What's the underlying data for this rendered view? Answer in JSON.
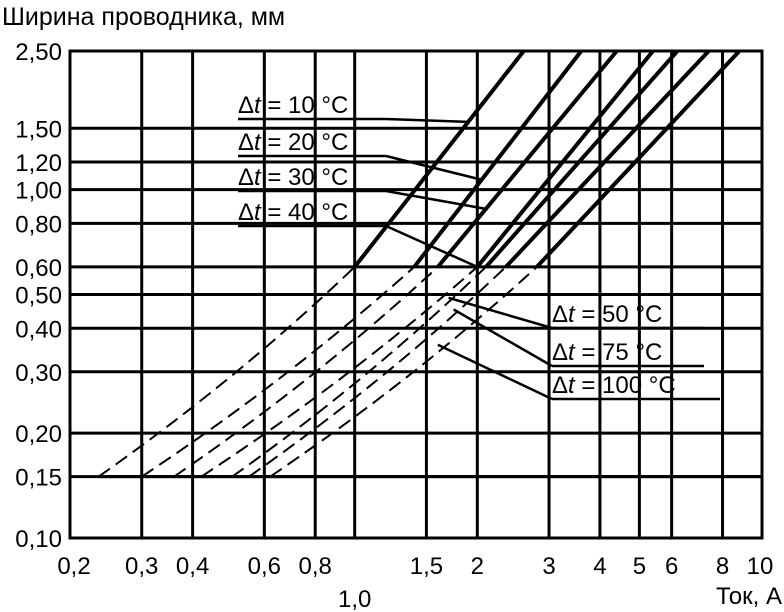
{
  "chart_data": {
    "type": "line",
    "title": "Ширина проводника, мм",
    "xlabel": "Ток, А",
    "ylabel": "Ширина проводника, мм",
    "x_scale": "log",
    "y_scale": "log",
    "xlim": [
      0.2,
      10
    ],
    "ylim": [
      0.1,
      2.5
    ],
    "grid": true,
    "x_ticks": [
      {
        "value": 0.2,
        "label": "0,2"
      },
      {
        "value": 0.3,
        "label": "0,3"
      },
      {
        "value": 0.4,
        "label": "0,4"
      },
      {
        "value": 0.6,
        "label": "0,6"
      },
      {
        "value": 0.8,
        "label": "0,8"
      },
      {
        "value": 1.0,
        "label": "1,0"
      },
      {
        "value": 1.5,
        "label": "1,5"
      },
      {
        "value": 2,
        "label": "2"
      },
      {
        "value": 3,
        "label": "3"
      },
      {
        "value": 4,
        "label": "4"
      },
      {
        "value": 5,
        "label": "5"
      },
      {
        "value": 6,
        "label": "6"
      },
      {
        "value": 8,
        "label": "8"
      },
      {
        "value": 10,
        "label": "10"
      }
    ],
    "y_ticks": [
      {
        "value": 0.1,
        "label": "0,10"
      },
      {
        "value": 0.15,
        "label": "0,15"
      },
      {
        "value": 0.2,
        "label": "0,20"
      },
      {
        "value": 0.3,
        "label": "0,30"
      },
      {
        "value": 0.4,
        "label": "0,40"
      },
      {
        "value": 0.5,
        "label": "0,50"
      },
      {
        "value": 0.6,
        "label": "0,60"
      },
      {
        "value": 0.8,
        "label": "0,80"
      },
      {
        "value": 1.0,
        "label": "1,00"
      },
      {
        "value": 1.2,
        "label": "1,20"
      },
      {
        "value": 1.5,
        "label": "1,50"
      },
      {
        "value": 2.5,
        "label": "2,50"
      }
    ],
    "y_min_line": 0.15,
    "solid_from_width": 0.6,
    "series": [
      {
        "name": "Δt = 10 °C",
        "label_t": "t",
        "label_rest": " = 10 °C",
        "x_start": 0.235,
        "x_at_0_6": 1.0,
        "x_end": 2.6,
        "leader_x": 1.9
      },
      {
        "name": "Δt = 20 °C",
        "label_t": "t",
        "label_rest": " = 20 °C",
        "x_start": 0.3,
        "x_at_0_6": 1.4,
        "x_end": 3.6,
        "leader_x": 2.05
      },
      {
        "name": "Δt = 30 °C",
        "label_t": "t",
        "label_rest": " = 30 °C",
        "x_start": 0.36,
        "x_at_0_6": 1.6,
        "x_end": 4.4,
        "leader_x": 2.1
      },
      {
        "name": "Δt = 40 °C",
        "label_t": "t",
        "label_rest": " = 40 °C",
        "x_start": 0.42,
        "x_at_0_6": 2.0,
        "x_end": 5.4,
        "leader_x": 2.0
      },
      {
        "name": "Δt = 50 °C",
        "label_t": "t",
        "label_rest": " = 50 °C",
        "x_start": 0.5,
        "x_at_0_6": 2.1,
        "x_end": 6.2,
        "leader_x": 1.7
      },
      {
        "name": "Δt = 75 °C",
        "label_t": "t",
        "label_rest": " = 75 °C",
        "x_start": 0.55,
        "x_at_0_6": 2.35,
        "x_end": 7.4,
        "leader_x": 1.75
      },
      {
        "name": "Δt = 100 °C",
        "label_t": "t",
        "label_rest": " = 100 °C",
        "x_start": 0.62,
        "x_at_0_6": 2.8,
        "x_end": 8.8,
        "leader_x": 1.6
      }
    ]
  }
}
